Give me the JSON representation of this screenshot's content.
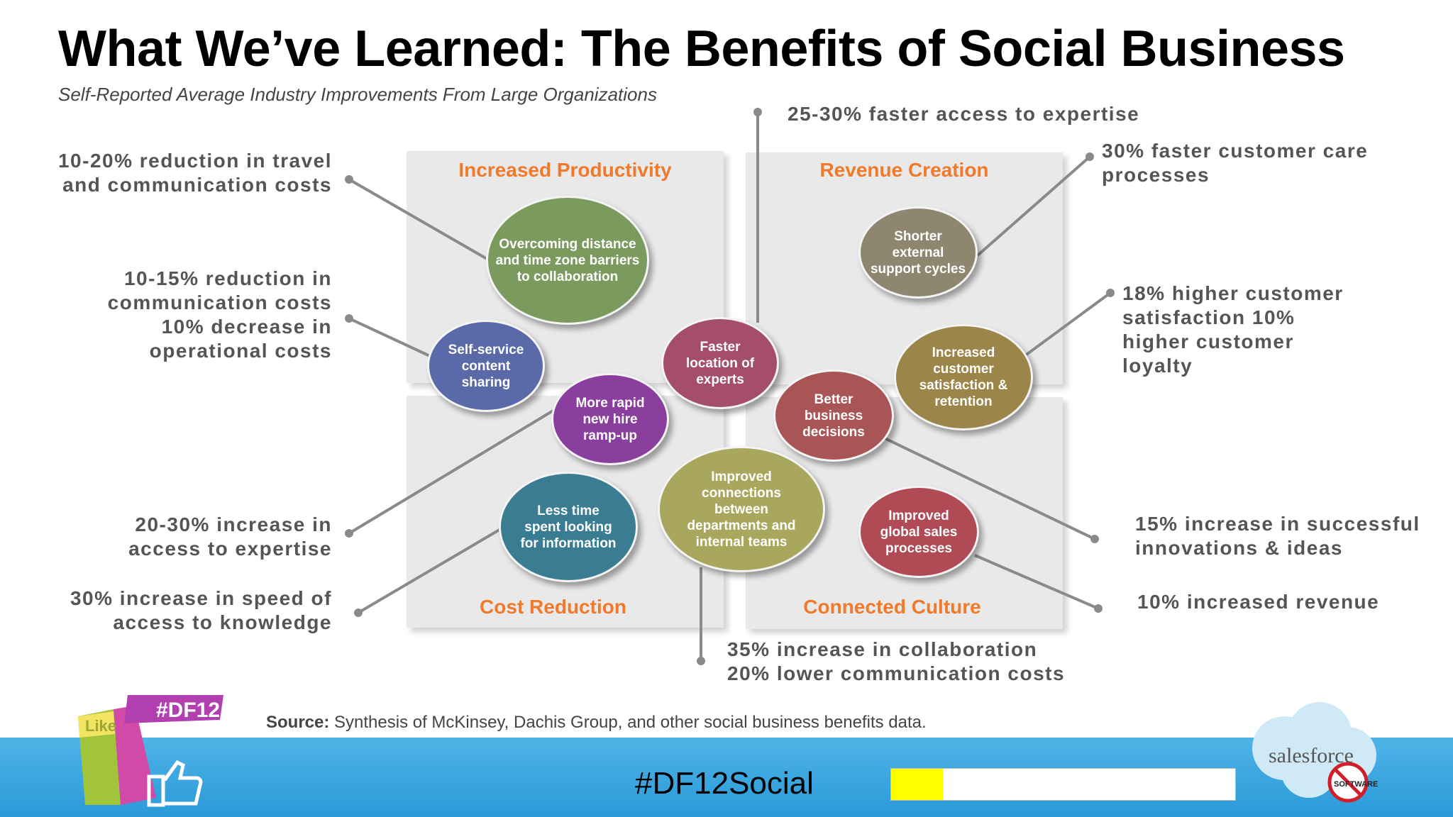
{
  "title": "What We’ve Learned: The Benefits of Social Business",
  "subtitle": "Self-Reported Average Industry Improvements From Large Organizations",
  "quadrants": {
    "productivity": "Increased Productivity",
    "revenue": "Revenue Creation",
    "cost": "Cost Reduction",
    "culture": "Connected Culture"
  },
  "bubbles": {
    "overcoming": "Overcoming distance and time zone barriers to collaboration",
    "selfservice": "Self-service content sharing",
    "newhire": "More rapid new hire ramp-up",
    "faster_location": "Faster location of experts",
    "shorter_support": "Shorter external support cycles",
    "increased_customer": "Increased customer satisfaction & retention",
    "better_decisions": "Better business decisions",
    "less_time": "Less time spent looking for information",
    "improved_connections": "Improved connections between departments and internal teams",
    "improved_sales": "Improved global sales processes"
  },
  "callouts": {
    "travel": "10-20% reduction in travel and communication costs",
    "comm_costs": "10-15% reduction in communication costs 10% decrease in operational costs",
    "access_expertise": "20-30% increase in access to expertise",
    "speed_knowledge": "30% increase in speed of access to knowledge",
    "faster_expertise": "25-30% faster access to expertise",
    "customer_care": "30% faster customer care processes",
    "satisfaction": "18% higher customer satisfaction 10% higher customer loyalty",
    "innovations": "15% increase in successful innovations & ideas",
    "revenue": "10% increased revenue",
    "collaboration": "35% increase in collaboration 20% lower communication costs"
  },
  "source_label": "Source:",
  "source_text": "Synthesis of McKinsey, Dachis Group, and other social business benefits data.",
  "hashtag": "#DF12Social",
  "progress_fraction": 0.15,
  "logos": {
    "df12_text": "#DF12",
    "like_text": "Like",
    "salesforce_text": "salesforce",
    "software_text": "SOFTWARE"
  },
  "colors": {
    "accent_orange": "#f07a2a",
    "bubble_green": "#7b9a5e",
    "bubble_blue": "#5a6aa8",
    "bubble_purple": "#8a3f9e",
    "bubble_rose": "#a54e6a",
    "bubble_taupe": "#8f8670",
    "bubble_olive": "#9b8548",
    "bubble_brickred": "#a95556",
    "bubble_teal": "#3a7c92",
    "bubble_khaki": "#a9a75d",
    "bubble_crimson": "#b04a55",
    "footer_blue": "#2a9ad9",
    "progress_yellow": "#ffff00"
  }
}
